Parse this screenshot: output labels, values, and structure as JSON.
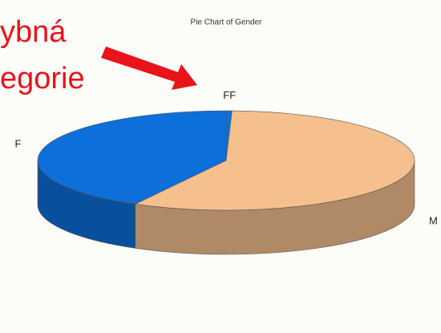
{
  "chart_data": {
    "type": "pie",
    "title": "Pie Chart of Gender",
    "categories": [
      "F",
      "FF",
      "M"
    ],
    "values": [
      42,
      0.5,
      57.5
    ],
    "colors": [
      "#0d6fd9",
      "#0d6fd9",
      "#f5bf8e"
    ],
    "annotations": [
      "ybná",
      "egorie"
    ]
  }
}
